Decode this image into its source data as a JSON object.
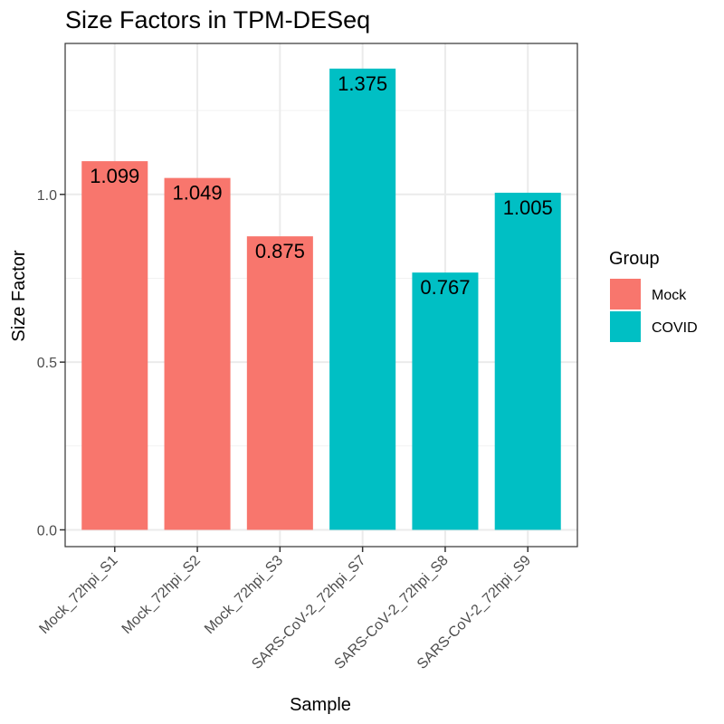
{
  "chart_data": {
    "type": "bar",
    "title": "Size Factors in TPM-DESeq",
    "xlabel": "Sample",
    "ylabel": "Size Factor",
    "ylim": [
      -0.05,
      1.45
    ],
    "yticks": [
      0.0,
      0.5,
      1.0
    ],
    "ytick_labels": [
      "0.0",
      "0.5",
      "1.0"
    ],
    "grid": true,
    "categories": [
      "Mock_72hpi_S1",
      "Mock_72hpi_S2",
      "Mock_72hpi_S3",
      "SARS-CoV-2_72hpi_S7",
      "SARS-CoV-2_72hpi_S8",
      "SARS-CoV-2_72hpi_S9"
    ],
    "values": [
      1.099,
      1.049,
      0.875,
      1.375,
      0.767,
      1.005
    ],
    "data_labels": [
      "1.099",
      "1.049",
      "0.875",
      "1.375",
      "0.767",
      "1.005"
    ],
    "groups": [
      "Mock",
      "Mock",
      "Mock",
      "COVID",
      "COVID",
      "COVID"
    ],
    "legend": {
      "title": "Group",
      "placement": "right",
      "items": [
        {
          "label": "Mock",
          "color": "#F8766D"
        },
        {
          "label": "COVID",
          "color": "#00BFC4"
        }
      ]
    }
  }
}
